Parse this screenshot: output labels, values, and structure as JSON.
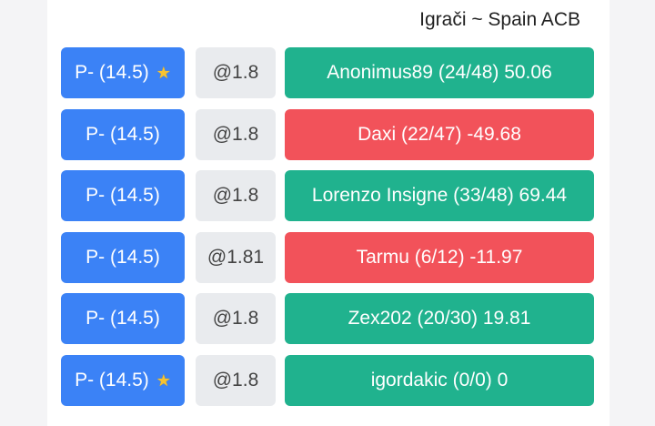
{
  "header": {
    "title": "Igrači ~ Spain ACB"
  },
  "colors": {
    "pick": "#3b82f6",
    "odds_bg": "#e9ebee",
    "positive": "#20b28e",
    "negative": "#f2525a"
  },
  "rows": [
    {
      "pick": "P- (14.5)",
      "star": true,
      "odds": "@1.8",
      "result": "Anonimus89 (24/48) 50.06",
      "status": "positive"
    },
    {
      "pick": "P- (14.5)",
      "star": false,
      "odds": "@1.8",
      "result": "Daxi (22/47) -49.68",
      "status": "negative"
    },
    {
      "pick": "P- (14.5)",
      "star": false,
      "odds": "@1.8",
      "result": "Lorenzo Insigne (33/48) 69.44",
      "status": "positive"
    },
    {
      "pick": "P- (14.5)",
      "star": false,
      "odds": "@1.81",
      "result": "Tarmu (6/12) -11.97",
      "status": "negative"
    },
    {
      "pick": "P- (14.5)",
      "star": false,
      "odds": "@1.8",
      "result": "Zex202 (20/30) 19.81",
      "status": "positive"
    },
    {
      "pick": "P- (14.5)",
      "star": true,
      "odds": "@1.8",
      "result": "igordakic (0/0) 0",
      "status": "positive"
    }
  ],
  "icons": {
    "star": "star-icon"
  },
  "star_glyph": "★"
}
